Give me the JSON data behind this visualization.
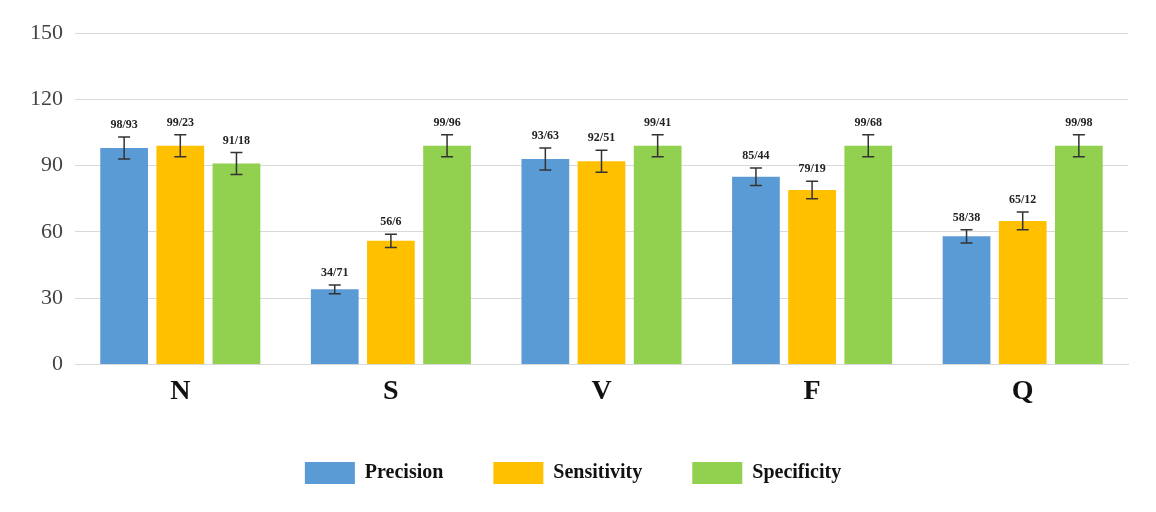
{
  "chart_data": {
    "type": "bar",
    "categories": [
      "N",
      "S",
      "V",
      "F",
      "Q"
    ],
    "series": [
      {
        "name": "Precision",
        "color": "#5b9bd5",
        "values": [
          98,
          34,
          93,
          85,
          58
        ],
        "errors": [
          5,
          2,
          5,
          4,
          3
        ],
        "value_labels": [
          "98/93",
          "34/71",
          "93/63",
          "85/44",
          "58/38"
        ]
      },
      {
        "name": "Sensitivity",
        "color": "#ffc000",
        "values": [
          99,
          56,
          92,
          79,
          65
        ],
        "errors": [
          5,
          3,
          5,
          4,
          4
        ],
        "value_labels": [
          "99/23",
          "56/6",
          "92/51",
          "79/19",
          "65/12"
        ]
      },
      {
        "name": "Specificity",
        "color": "#92d050",
        "values": [
          91,
          99,
          99,
          99,
          99
        ],
        "errors": [
          5,
          5,
          5,
          5,
          5
        ],
        "value_labels": [
          "91/18",
          "99/96",
          "99/41",
          "99/68",
          "99/98"
        ]
      }
    ],
    "ylim": [
      0,
      150
    ],
    "yticks": [
      0,
      30,
      60,
      90,
      120,
      150
    ],
    "grid": "y",
    "legend": "bottom"
  }
}
